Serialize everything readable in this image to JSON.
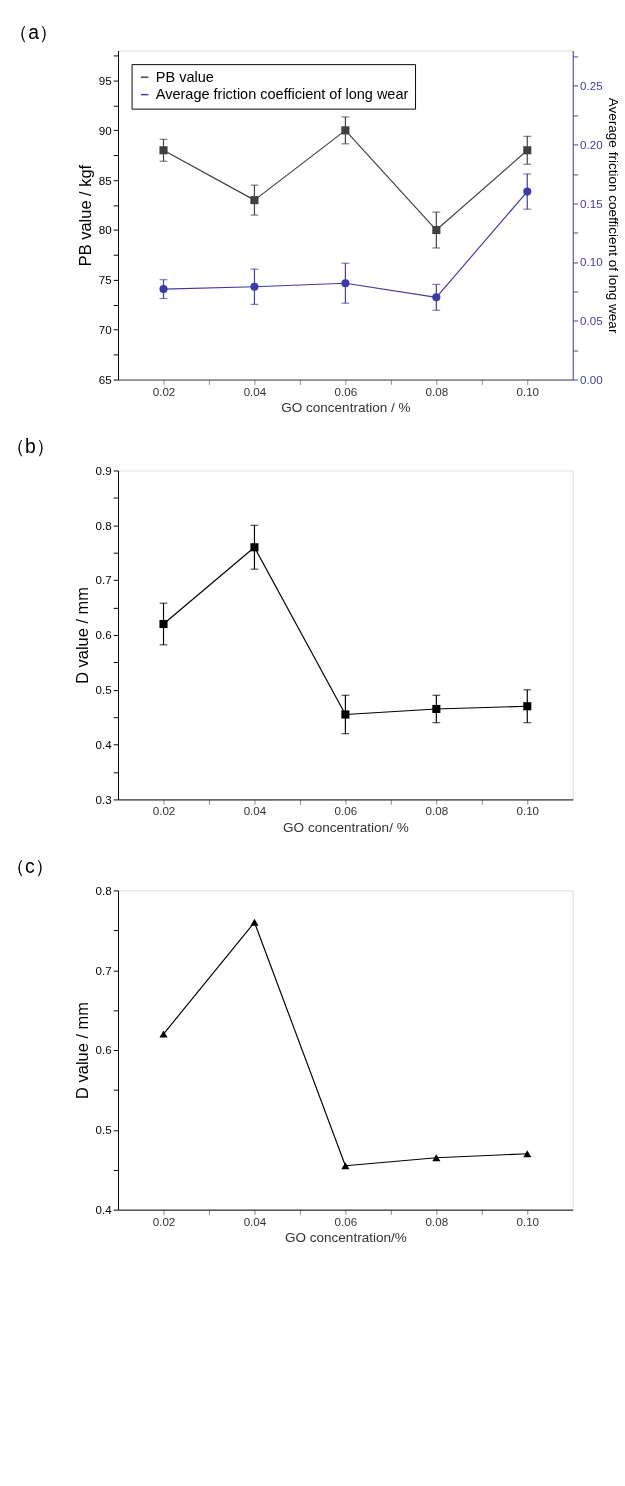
{
  "chart_data": [
    {
      "type": "line",
      "title": "（a）",
      "xlabel": "GO concentration / %",
      "ylabel": "PB value / kgf",
      "y2label": "Average friction coefficient of long wear",
      "x": [
        0.02,
        0.04,
        0.06,
        0.08,
        0.1
      ],
      "series": [
        {
          "name": "PB value",
          "color": "#404040",
          "marker": "square",
          "values": [
            88,
            83,
            90,
            80,
            88
          ],
          "errors": [
            1.1,
            1.5,
            1.35,
            1.8,
            1.4
          ]
        },
        {
          "name": "Average friction coefficient of long wear",
          "color": "#3b3bab",
          "marker": "circle",
          "axis": "y2",
          "values": [
            0.077,
            0.079,
            0.082,
            0.07,
            0.16
          ],
          "errors": [
            0.008,
            0.015,
            0.017,
            0.011,
            0.015
          ]
        }
      ],
      "xlim": [
        0.01,
        0.11
      ],
      "xticks": [
        0.02,
        {
          "value": 0.03,
          "label": null
        },
        0.04,
        {
          "value": 0.05,
          "label": null
        },
        0.06,
        {
          "value": 0.07,
          "label": null
        },
        0.08,
        {
          "value": 0.09,
          "label": null
        },
        {
          "value": 0.1,
          "label": "0.10"
        }
      ],
      "ylim": [
        65,
        98
      ],
      "yticks": [
        65,
        {
          "value": 67.5,
          "label": null
        },
        70,
        {
          "value": 72.5,
          "label": null
        },
        75,
        {
          "value": 77.5,
          "label": null
        },
        80,
        {
          "value": 82.5,
          "label": null
        },
        85,
        {
          "value": 87.5,
          "label": null
        },
        90,
        {
          "value": 92.5,
          "label": null
        },
        95,
        {
          "value": 97.5,
          "label": null
        }
      ],
      "y2lim": [
        0,
        0.28
      ],
      "y2ticks": [
        {
          "value": 0,
          "label": "0.00"
        },
        {
          "value": 0.025,
          "label": null
        },
        0.05,
        {
          "value": 0.075,
          "label": null
        },
        {
          "value": 0.1,
          "label": "0.10"
        },
        {
          "value": 0.125,
          "label": null
        },
        0.15,
        {
          "value": 0.175,
          "label": null
        },
        {
          "value": 0.2,
          "label": "0.20"
        },
        {
          "value": 0.225,
          "label": null
        },
        0.25,
        {
          "value": 0.275,
          "label": null
        }
      ],
      "legend": "top",
      "grid": false,
      "line_style": "solid"
    },
    {
      "type": "line",
      "title": "（b）",
      "xlabel": "GO concentration/ %",
      "ylabel": "D value / mm",
      "x": [
        0.02,
        0.04,
        0.06,
        0.08,
        0.1
      ],
      "series": [
        {
          "color": "#000000",
          "marker": "square",
          "values": [
            0.62,
            0.76,
            0.455,
            0.465,
            0.47
          ],
          "errors": [
            0.038,
            0.04,
            0.035,
            0.025,
            0.03
          ]
        }
      ],
      "xlim": [
        0.01,
        0.11
      ],
      "xticks": [
        0.02,
        {
          "value": 0.03,
          "label": null
        },
        0.04,
        {
          "value": 0.05,
          "label": null
        },
        0.06,
        {
          "value": 0.07,
          "label": null
        },
        0.08,
        {
          "value": 0.09,
          "label": null
        },
        {
          "value": 0.1,
          "label": "0.10"
        }
      ],
      "ylim": [
        0.3,
        0.9
      ],
      "yticks": [
        0.3,
        {
          "value": 0.35,
          "label": null
        },
        0.4,
        {
          "value": 0.45,
          "label": null
        },
        0.5,
        {
          "value": 0.55,
          "label": null
        },
        0.6,
        {
          "value": 0.65,
          "label": null
        },
        0.7,
        {
          "value": 0.75,
          "label": null
        },
        0.8,
        {
          "value": 0.85,
          "label": null
        },
        0.9
      ],
      "legend": false,
      "grid": false,
      "line_style": "solid"
    },
    {
      "type": "line",
      "title": "（c）",
      "xlabel": "GO concentration/%",
      "ylabel": "D value / mm",
      "x": [
        0.02,
        0.04,
        0.06,
        0.08,
        0.1
      ],
      "series": [
        {
          "color": "#000000",
          "marker": "triangle",
          "values": [
            0.62,
            0.76,
            0.455,
            0.465,
            0.47
          ]
        }
      ],
      "xlim": [
        0.01,
        0.11
      ],
      "xticks": [
        0.02,
        {
          "value": 0.03,
          "label": null
        },
        0.04,
        {
          "value": 0.05,
          "label": null
        },
        0.06,
        {
          "value": 0.07,
          "label": null
        },
        0.08,
        {
          "value": 0.09,
          "label": null
        },
        {
          "value": 0.1,
          "label": "0.10"
        }
      ],
      "ylim": [
        0.4,
        0.8
      ],
      "yticks": [
        0.4,
        {
          "value": 0.45,
          "label": null
        },
        0.5,
        {
          "value": 0.55,
          "label": null
        },
        0.6,
        {
          "value": 0.65,
          "label": null
        },
        0.7,
        {
          "value": 0.75,
          "label": null
        },
        0.8
      ],
      "legend": false,
      "grid": false,
      "line_style": "solid"
    }
  ]
}
